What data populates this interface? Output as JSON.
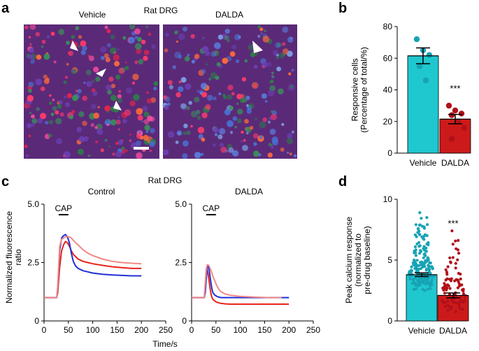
{
  "colors": {
    "vehicle": "#1fc7cf",
    "vehicle_dot": "#17a3b5",
    "dalda": "#cc1a1a",
    "dalda_dot": "#b0101a",
    "trace_red": "#e8231c",
    "trace_blue": "#1f2fd6",
    "trace_pink": "#f08a86",
    "micrograph_bg": "#5a2a78",
    "scale_bar": "#ffffff"
  },
  "panel_a": {
    "letter": "a",
    "title": "Rat DRG",
    "images": [
      {
        "label": "Vehicle",
        "arrows": 3
      },
      {
        "label": "DALDA",
        "arrows": 1
      }
    ]
  },
  "panel_c": {
    "letter": "c",
    "title": "Rat DRG",
    "subplot_labels": [
      "Control",
      "DALDA"
    ],
    "stim_label": "CAP",
    "ylabel_lines": [
      "Normalized fluorescence",
      "ratio"
    ],
    "xlabel": "Time/s",
    "y_ticks": [
      "0",
      "2.5",
      "5.0"
    ],
    "x_ticks": [
      "0",
      "50",
      "100",
      "150",
      "200",
      "250"
    ]
  },
  "chart_data": [
    {
      "panel": "b",
      "type": "bar",
      "categories": [
        "Vehicle",
        "DALDA"
      ],
      "values": [
        61.5,
        21.5
      ],
      "sem": [
        5,
        3
      ],
      "points": [
        [
          72,
          65,
          62,
          55,
          46
        ],
        [
          30,
          27,
          25,
          24,
          20,
          16,
          9
        ]
      ],
      "significance": [
        "",
        "***"
      ],
      "ylabel": "Responsive cells (Percentage of total/%)",
      "ylabel_lines": [
        "Responsive cells",
        "(Percentage of total/%)"
      ],
      "ylim": [
        0,
        80
      ],
      "yticks": [
        0,
        20,
        40,
        60,
        80
      ]
    },
    {
      "panel": "c-control",
      "type": "line",
      "title": "Control",
      "xlim": [
        0,
        250
      ],
      "ylim": [
        0,
        5
      ],
      "stim_window": [
        30,
        50
      ],
      "series": [
        {
          "name": "red",
          "color_key": "trace_red",
          "x": [
            0,
            26,
            28,
            32,
            36,
            40,
            44,
            48,
            52,
            56,
            60,
            70,
            80,
            100,
            120,
            140,
            160,
            180,
            200
          ],
          "y": [
            1.0,
            1.0,
            1.2,
            2.3,
            3.0,
            3.25,
            3.4,
            3.35,
            3.2,
            3.0,
            2.85,
            2.65,
            2.55,
            2.45,
            2.38,
            2.32,
            2.28,
            2.25,
            2.25
          ]
        },
        {
          "name": "blue",
          "color_key": "trace_blue",
          "x": [
            0,
            26,
            28,
            32,
            36,
            40,
            44,
            48,
            52,
            56,
            60,
            65,
            70,
            80,
            100,
            120,
            140,
            160,
            180,
            200
          ],
          "y": [
            1.0,
            1.0,
            1.4,
            3.0,
            3.55,
            3.65,
            3.7,
            3.6,
            3.35,
            2.9,
            2.55,
            2.35,
            2.25,
            2.15,
            2.05,
            2.0,
            1.97,
            1.95,
            1.93,
            1.93
          ]
        },
        {
          "name": "pink",
          "color_key": "trace_pink",
          "x": [
            0,
            26,
            28,
            32,
            36,
            40,
            44,
            48,
            52,
            56,
            60,
            70,
            80,
            90,
            100,
            120,
            140,
            160,
            180,
            200
          ],
          "y": [
            1.0,
            1.0,
            1.5,
            3.2,
            3.5,
            3.55,
            3.6,
            3.62,
            3.6,
            3.55,
            3.45,
            3.25,
            3.05,
            2.9,
            2.8,
            2.65,
            2.55,
            2.5,
            2.47,
            2.45
          ]
        }
      ]
    },
    {
      "panel": "c-dalda",
      "type": "line",
      "title": "DALDA",
      "xlim": [
        0,
        250
      ],
      "ylim": [
        0,
        5
      ],
      "stim_window": [
        30,
        50
      ],
      "series": [
        {
          "name": "red",
          "color_key": "trace_red",
          "x": [
            0,
            26,
            28,
            30,
            32,
            34,
            36,
            38,
            40,
            42,
            44,
            48,
            52,
            60,
            70,
            80,
            100,
            140,
            200
          ],
          "y": [
            1.0,
            1.0,
            1.5,
            2.1,
            2.2,
            2.0,
            1.7,
            1.4,
            1.15,
            1.0,
            0.92,
            0.85,
            0.8,
            0.75,
            0.73,
            0.72,
            0.72,
            0.72,
            0.72
          ]
        },
        {
          "name": "blue",
          "color_key": "trace_blue",
          "x": [
            0,
            26,
            28,
            30,
            32,
            34,
            36,
            38,
            40,
            42,
            44,
            48,
            52,
            56,
            60,
            70,
            80,
            100,
            140,
            200
          ],
          "y": [
            1.0,
            1.0,
            1.2,
            1.8,
            2.3,
            2.35,
            2.2,
            1.9,
            1.6,
            1.35,
            1.2,
            1.1,
            1.05,
            1.02,
            1.0,
            1.0,
            1.0,
            1.0,
            1.0,
            1.0
          ]
        },
        {
          "name": "pink",
          "color_key": "trace_pink",
          "x": [
            0,
            26,
            28,
            30,
            32,
            34,
            36,
            40,
            44,
            48,
            52,
            56,
            60,
            70,
            80,
            100,
            130,
            160,
            185
          ],
          "y": [
            1.0,
            1.0,
            1.6,
            2.2,
            2.4,
            2.4,
            2.35,
            2.15,
            1.9,
            1.7,
            1.5,
            1.35,
            1.25,
            1.15,
            1.1,
            1.05,
            1.02,
            1.0,
            1.0
          ]
        }
      ]
    },
    {
      "panel": "d",
      "type": "bar",
      "categories": [
        "Vehicle",
        "DALDA"
      ],
      "values": [
        3.8,
        2.1
      ],
      "sem": [
        0.15,
        0.2
      ],
      "significance": [
        "",
        "***"
      ],
      "ylabel": "Peak calcium response (normalized to pre-drug baseline)",
      "ylabel_lines": [
        "Peak calcium response",
        "(normalized to",
        "pre-drug baseline)"
      ],
      "ylim": [
        0,
        10
      ],
      "yticks": [
        0,
        5,
        10
      ],
      "point_ranges": [
        [
          1.4,
          8.9
        ],
        [
          0.4,
          7.7
        ]
      ],
      "point_counts": [
        180,
        90
      ]
    }
  ]
}
